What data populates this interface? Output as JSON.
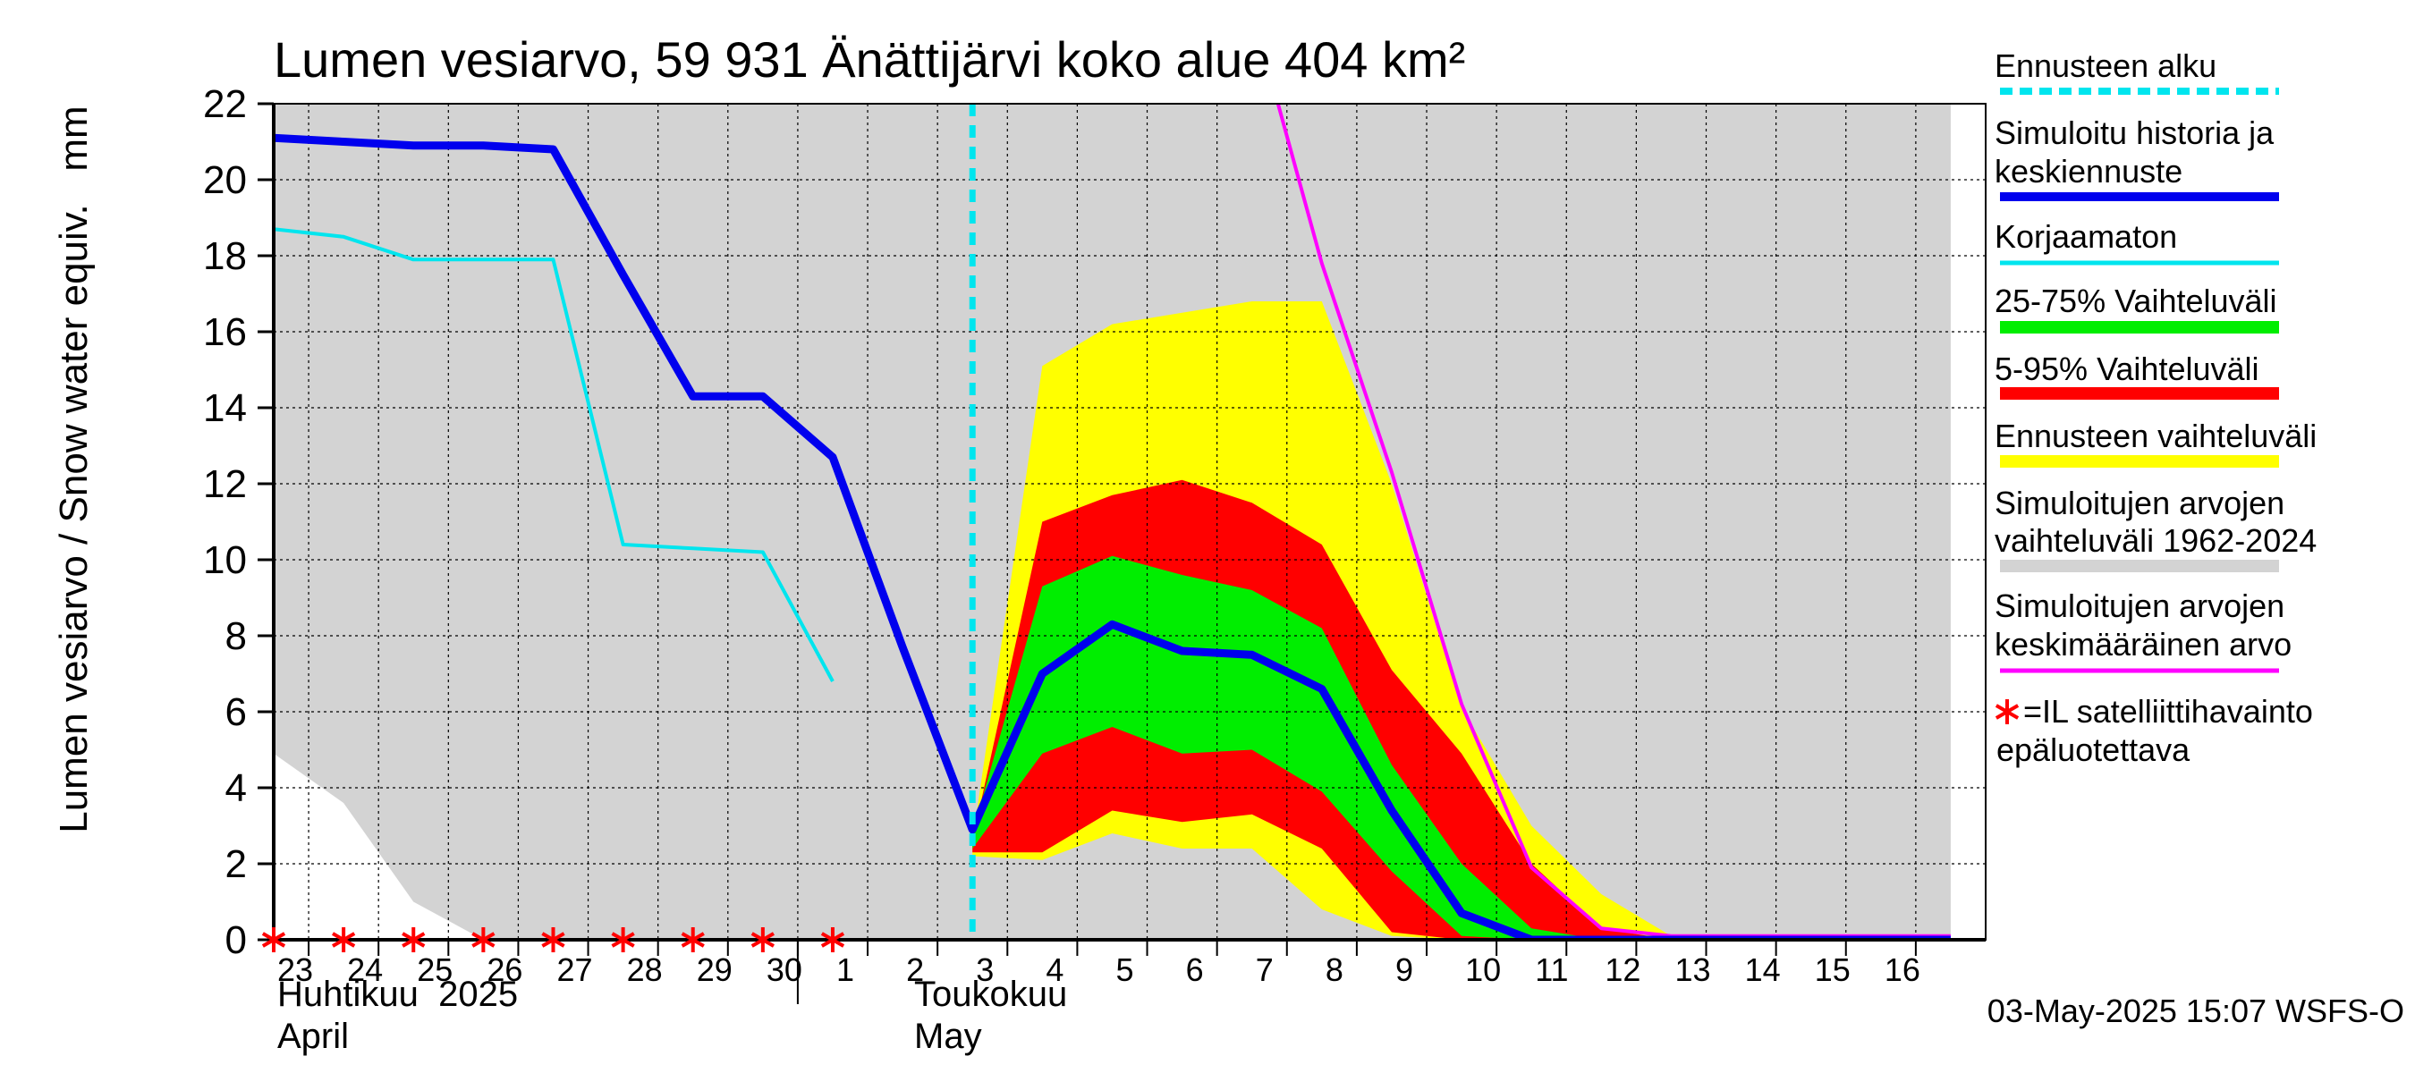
{
  "chart_data": {
    "type": "area",
    "title": "Lumen vesiarvo, 59 931 Änättijärvi koko alue 404 km²",
    "ylabel": "Lumen vesiarvo / Snow water equiv.",
    "yunit": "mm",
    "ylim": [
      0,
      22
    ],
    "yticks": [
      0,
      2,
      4,
      6,
      8,
      10,
      12,
      14,
      16,
      18,
      20,
      22
    ],
    "grid": true,
    "x_day_labels": [
      "23",
      "24",
      "25",
      "26",
      "27",
      "28",
      "29",
      "30",
      "1",
      "2",
      "3",
      "4",
      "5",
      "6",
      "7",
      "8",
      "9",
      "10",
      "11",
      "12",
      "13",
      "14",
      "15",
      "16"
    ],
    "x_dates": [
      "2025-04-23",
      "2025-04-24",
      "2025-04-25",
      "2025-04-26",
      "2025-04-27",
      "2025-04-28",
      "2025-04-29",
      "2025-04-30",
      "2025-05-01",
      "2025-05-02",
      "2025-05-03",
      "2025-05-04",
      "2025-05-05",
      "2025-05-06",
      "2025-05-07",
      "2025-05-08",
      "2025-05-09",
      "2025-05-10",
      "2025-05-11",
      "2025-05-12",
      "2025-05-13",
      "2025-05-14",
      "2025-05-15",
      "2025-05-16"
    ],
    "month_labels": [
      {
        "fi": "Huhtikuu  2025",
        "en": "April",
        "start_date": "2025-04-23"
      },
      {
        "fi": "Toukokuu",
        "en": "May",
        "start_date": "2025-05-01"
      }
    ],
    "forecast_start": "2025-05-03",
    "series": [
      {
        "name": "Simuloitujen arvojen vaihteluväli 1962-2024",
        "type": "band",
        "color": "#d3d3d3",
        "x": [
          "2025-04-23",
          "2025-04-24",
          "2025-04-25",
          "2025-04-26",
          "2025-04-27",
          "2025-05-17"
        ],
        "low": [
          4.9,
          3.6,
          1.0,
          0,
          0,
          0
        ],
        "high": [
          22,
          22,
          22,
          22,
          22,
          22
        ]
      },
      {
        "name": "Ennusteen vaihteluväli",
        "type": "band",
        "color": "#ffff00",
        "x": [
          "2025-05-03",
          "2025-05-04",
          "2025-05-05",
          "2025-05-06",
          "2025-05-07",
          "2025-05-08",
          "2025-05-09",
          "2025-05-10",
          "2025-05-11",
          "2025-05-12",
          "2025-05-13"
        ],
        "low": [
          2.2,
          2.1,
          2.8,
          2.4,
          2.4,
          0.8,
          0.1,
          0,
          0,
          0,
          0
        ],
        "high": [
          2.6,
          15.1,
          16.2,
          16.5,
          16.8,
          16.8,
          12.0,
          6.1,
          3.0,
          1.2,
          0.1
        ]
      },
      {
        "name": "5-95% Vaihteluväli",
        "type": "band",
        "color": "#ff0000",
        "x": [
          "2025-05-03",
          "2025-05-04",
          "2025-05-05",
          "2025-05-06",
          "2025-05-07",
          "2025-05-08",
          "2025-05-09",
          "2025-05-10",
          "2025-05-11",
          "2025-05-12",
          "2025-05-13"
        ],
        "low": [
          2.3,
          2.3,
          3.4,
          3.1,
          3.3,
          2.4,
          0.2,
          0,
          0,
          0,
          0
        ],
        "high": [
          2.6,
          11.0,
          11.7,
          12.1,
          11.5,
          10.4,
          7.1,
          4.9,
          2.0,
          0.3,
          0
        ],
        "draw": "merged"
      },
      {
        "name": "25-75% Vaihteluväli",
        "type": "band",
        "color": "#00ee00",
        "x": [
          "2025-05-03",
          "2025-05-04",
          "2025-05-05",
          "2025-05-06",
          "2025-05-07",
          "2025-05-08",
          "2025-05-09",
          "2025-05-10",
          "2025-05-11",
          "2025-05-12"
        ],
        "low": [
          2.4,
          4.9,
          5.6,
          4.9,
          5.0,
          3.9,
          1.8,
          0.1,
          0,
          0
        ],
        "high": [
          2.8,
          9.3,
          10.1,
          9.6,
          9.2,
          8.2,
          4.6,
          2.0,
          0.3,
          0
        ]
      },
      {
        "name": "Simuloitujen arvojen keskimääräinen arvo",
        "type": "line",
        "color": "#ff00ff",
        "x": [
          "2025-05-07",
          "2025-05-08",
          "2025-05-09",
          "2025-05-10",
          "2025-05-11",
          "2025-05-12",
          "2025-05-13",
          "2025-05-17"
        ],
        "values": [
          24.5,
          17.8,
          12.3,
          6.2,
          1.9,
          0.3,
          0.1,
          0.1
        ]
      },
      {
        "name": "Korjaamaton",
        "type": "line",
        "color": "#00e5ee",
        "x": [
          "2025-04-23",
          "2025-04-24",
          "2025-04-25",
          "2025-04-26",
          "2025-04-27",
          "2025-04-28",
          "2025-04-29",
          "2025-04-30",
          "2025-05-01"
        ],
        "values": [
          18.7,
          18.5,
          17.9,
          17.9,
          17.9,
          10.4,
          10.3,
          10.2,
          6.8
        ]
      },
      {
        "name": "Simuloitu historia ja keskiennuste",
        "type": "line",
        "color": "#0000ee",
        "x": [
          "2025-04-23",
          "2025-04-24",
          "2025-04-25",
          "2025-04-26",
          "2025-04-27",
          "2025-04-28",
          "2025-04-29",
          "2025-04-30",
          "2025-05-01",
          "2025-05-02",
          "2025-05-03",
          "2025-05-04",
          "2025-05-05",
          "2025-05-06",
          "2025-05-07",
          "2025-05-08",
          "2025-05-09",
          "2025-05-10",
          "2025-05-11",
          "2025-05-12",
          "2025-05-13",
          "2025-05-17"
        ],
        "values": [
          21.1,
          21.0,
          20.9,
          20.9,
          20.8,
          17.5,
          14.3,
          14.3,
          12.7,
          7.7,
          2.9,
          7.0,
          8.3,
          7.6,
          7.5,
          6.6,
          3.4,
          0.7,
          0,
          0,
          0,
          0
        ]
      }
    ],
    "satellite_markers": {
      "label": "=IL satelliittihavainto epäluotettava",
      "color": "#ff0000",
      "dates": [
        "2025-04-23",
        "2025-04-24",
        "2025-04-25",
        "2025-04-26",
        "2025-04-27",
        "2025-04-28",
        "2025-04-29",
        "2025-04-30",
        "2025-05-01"
      ],
      "values": [
        0,
        0,
        0,
        0,
        0,
        0,
        0,
        0,
        0
      ]
    },
    "legend": {
      "placement": "right",
      "items": [
        {
          "label": "Ennusteen alku",
          "color": "#00e5ee",
          "style": "dashed"
        },
        {
          "label": "Simuloitu historia ja keskiennuste",
          "color": "#0000ee",
          "style": "line-thick"
        },
        {
          "label": "Korjaamaton",
          "color": "#00e5ee",
          "style": "line"
        },
        {
          "label": "25-75% Vaihteluväli",
          "color": "#00ee00",
          "style": "band"
        },
        {
          "label": "5-95% Vaihteluväli",
          "color": "#ff0000",
          "style": "band"
        },
        {
          "label": "Ennusteen vaihteluväli",
          "color": "#ffff00",
          "style": "band"
        },
        {
          "label": "Simuloitujen arvojen vaihteluväli 1962-2024",
          "color": "#d3d3d3",
          "style": "band"
        },
        {
          "label": "Simuloitujen arvojen keskimääräinen arvo",
          "color": "#ff00ff",
          "style": "line"
        },
        {
          "label": "=IL satelliittihavainto epäluotettava",
          "color": "#ff0000",
          "style": "asterisk"
        }
      ]
    },
    "footer": "03-May-2025 15:07 WSFS-O"
  }
}
